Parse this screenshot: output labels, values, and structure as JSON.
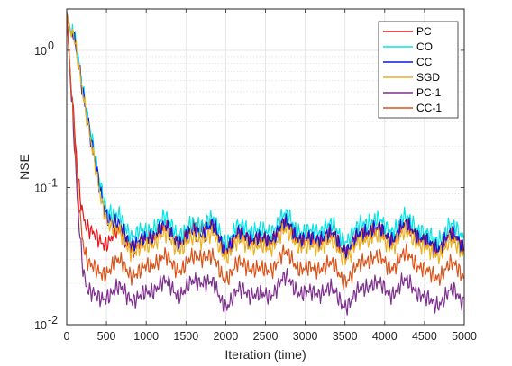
{
  "chart_data": {
    "type": "line",
    "title": "",
    "xlabel": "Iteration (time)",
    "ylabel": "NSE",
    "xlim": [
      0,
      5000
    ],
    "ylim": [
      0.01,
      2
    ],
    "yscale": "log",
    "grid": true,
    "minor_grid": true,
    "legend_position": "top-right",
    "x_ticks": [
      0,
      500,
      1000,
      1500,
      2000,
      2500,
      3000,
      3500,
      4000,
      4500,
      5000
    ],
    "x_tick_labels": [
      "0",
      "500",
      "1000",
      "1500",
      "2000",
      "2500",
      "3000",
      "3500",
      "4000",
      "4500",
      "5000"
    ],
    "y_ticks": [
      0.01,
      0.1,
      1
    ],
    "y_tick_bases": [
      "10",
      "10",
      "10"
    ],
    "y_tick_exponents": [
      "-2",
      "-1",
      "0"
    ],
    "series": [
      {
        "name": "PC",
        "color": "#e8141c",
        "x": [
          0,
          50,
          100,
          150,
          200,
          250,
          300,
          400,
          500,
          600,
          800,
          1000,
          1200,
          1500,
          1850,
          2000,
          2500,
          3000,
          3500,
          4000,
          4500,
          5000
        ],
        "y": [
          1.9,
          0.6,
          0.2,
          0.09,
          0.06,
          0.05,
          0.048,
          0.045,
          0.044,
          0.045,
          0.043,
          0.044,
          0.042,
          0.043,
          0.052,
          0.043,
          0.042,
          0.043,
          0.042,
          0.044,
          0.043,
          0.04
        ]
      },
      {
        "name": "CO",
        "color": "#00e5e5",
        "x": [
          0,
          100,
          200,
          300,
          400,
          500,
          600,
          700,
          800,
          900,
          1000,
          1200,
          1500,
          1700,
          1850,
          2000,
          2500,
          3000,
          3500,
          4000,
          4500,
          5000
        ],
        "y": [
          1.9,
          1.0,
          0.5,
          0.25,
          0.13,
          0.08,
          0.06,
          0.055,
          0.052,
          0.055,
          0.05,
          0.05,
          0.048,
          0.05,
          0.06,
          0.05,
          0.05,
          0.05,
          0.051,
          0.052,
          0.05,
          0.048
        ]
      },
      {
        "name": "CC",
        "color": "#0a18d8",
        "x": [
          0,
          100,
          200,
          300,
          400,
          500,
          600,
          700,
          800,
          900,
          1000,
          1200,
          1500,
          1700,
          1850,
          2000,
          2500,
          3000,
          3500,
          4000,
          4500,
          5000
        ],
        "y": [
          1.9,
          0.95,
          0.48,
          0.23,
          0.12,
          0.07,
          0.052,
          0.047,
          0.045,
          0.046,
          0.044,
          0.043,
          0.042,
          0.043,
          0.054,
          0.044,
          0.043,
          0.044,
          0.043,
          0.045,
          0.044,
          0.041
        ]
      },
      {
        "name": "SGD",
        "color": "#edb120",
        "x": [
          0,
          100,
          200,
          300,
          400,
          500,
          600,
          700,
          800,
          900,
          1000,
          1200,
          1500,
          1700,
          1850,
          2000,
          2500,
          3000,
          3500,
          4000,
          4500,
          5000
        ],
        "y": [
          1.9,
          0.95,
          0.47,
          0.22,
          0.11,
          0.065,
          0.047,
          0.042,
          0.04,
          0.041,
          0.039,
          0.038,
          0.038,
          0.039,
          0.046,
          0.039,
          0.038,
          0.039,
          0.038,
          0.04,
          0.039,
          0.036
        ]
      },
      {
        "name": "PC-1",
        "color": "#7e2f8e",
        "x": [
          0,
          50,
          100,
          150,
          200,
          250,
          300,
          400,
          500,
          600,
          800,
          1000,
          1200,
          1500,
          1850,
          2000,
          2500,
          3000,
          3500,
          4000,
          4500,
          5000
        ],
        "y": [
          1.9,
          0.55,
          0.15,
          0.05,
          0.025,
          0.018,
          0.017,
          0.017,
          0.018,
          0.017,
          0.018,
          0.018,
          0.017,
          0.018,
          0.02,
          0.017,
          0.017,
          0.018,
          0.017,
          0.018,
          0.017,
          0.016
        ]
      },
      {
        "name": "CC-1",
        "color": "#d95319",
        "x": [
          0,
          50,
          100,
          150,
          200,
          250,
          300,
          400,
          500,
          600,
          800,
          1000,
          1200,
          1500,
          1850,
          2000,
          2500,
          3000,
          3500,
          4000,
          4500,
          5000
        ],
        "y": [
          1.9,
          0.6,
          0.18,
          0.07,
          0.038,
          0.029,
          0.027,
          0.026,
          0.027,
          0.027,
          0.027,
          0.028,
          0.026,
          0.027,
          0.031,
          0.027,
          0.026,
          0.027,
          0.026,
          0.028,
          0.027,
          0.025
        ]
      }
    ]
  }
}
